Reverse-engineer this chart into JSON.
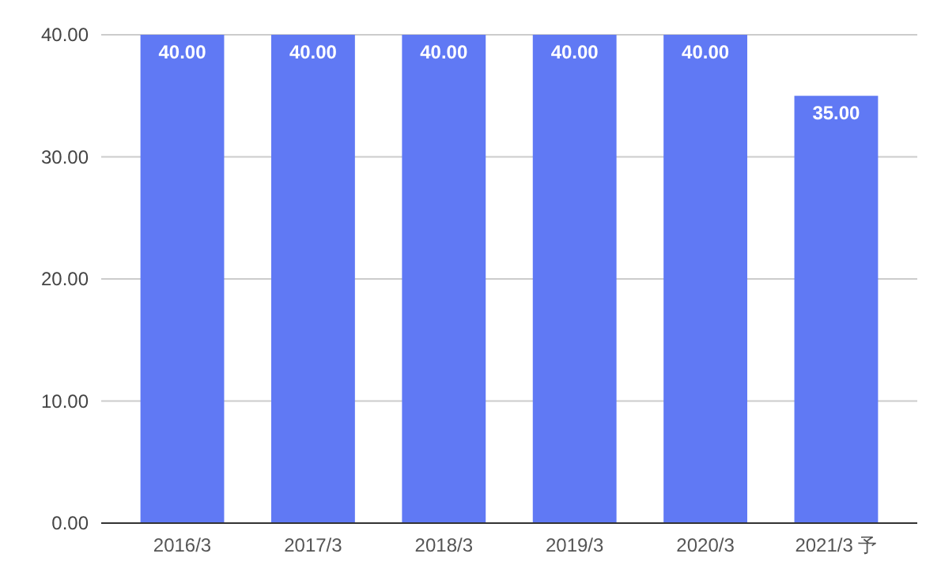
{
  "chart_data": {
    "type": "bar",
    "categories": [
      "2016/3",
      "2017/3",
      "2018/3",
      "2019/3",
      "2020/3",
      "2021/3 予"
    ],
    "values": [
      40,
      40,
      40,
      40,
      40,
      35
    ],
    "value_labels": [
      "40.00",
      "40.00",
      "40.00",
      "40.00",
      "40.00",
      "35.00"
    ],
    "color": "#6079f4",
    "ylim": [
      0,
      40
    ],
    "yticks": [
      {
        "value": 0,
        "label": "0.00"
      },
      {
        "value": 10,
        "label": "10.00"
      },
      {
        "value": 20,
        "label": "20.00"
      },
      {
        "value": 30,
        "label": "30.00"
      },
      {
        "value": 40,
        "label": "40.00"
      }
    ],
    "grid": "y"
  }
}
